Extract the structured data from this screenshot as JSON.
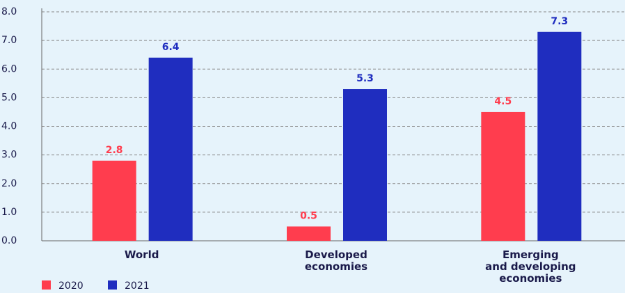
{
  "chart_data": {
    "type": "bar",
    "categories": [
      "World",
      "Developed\neconomies",
      "Emerging\nand developing\neconomies"
    ],
    "series": [
      {
        "name": "2020",
        "color": "#ff3d4e",
        "values": [
          2.8,
          0.5,
          4.5
        ]
      },
      {
        "name": "2021",
        "color": "#1f2dbf",
        "values": [
          6.4,
          5.3,
          7.3
        ]
      }
    ],
    "ylim": [
      0,
      8
    ],
    "yticks": [
      {
        "value": 0,
        "label": "0.0"
      },
      {
        "value": 1,
        "label": "1.0"
      },
      {
        "value": 2,
        "label": "2.0"
      },
      {
        "value": 3,
        "label": "3.0"
      },
      {
        "value": 4,
        "label": "4.0"
      },
      {
        "value": 5,
        "label": "5.0"
      },
      {
        "value": 6,
        "label": "6.0"
      },
      {
        "value": 7,
        "label": "7.0"
      },
      {
        "value": 8,
        "label": "8.0"
      }
    ],
    "grid": true
  }
}
